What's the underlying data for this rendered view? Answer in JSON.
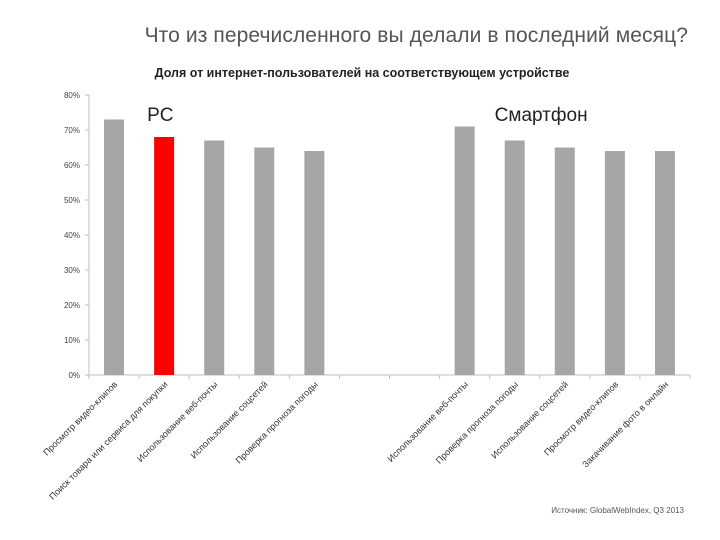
{
  "slide": {
    "title": "Что из перечисленного вы делали в последний месяц?",
    "source": "Источник: GlobalWebIndex, Q3 2013"
  },
  "chart_data": {
    "type": "bar",
    "title": "Доля от интернет-пользователей на соответствующем устройстве",
    "xlabel": "",
    "ylabel": "",
    "ylim": [
      0,
      80
    ],
    "yticks": [
      "0%",
      "10%",
      "20%",
      "30%",
      "40%",
      "50%",
      "60%",
      "70%",
      "80%"
    ],
    "grid": false,
    "groups": [
      {
        "name": "PC",
        "categories": [
          "Просмотр видео-клипов",
          "Поиск товара или сервиса для покупки",
          "Использование веб-почты",
          "Использование соцсетей",
          "Проверка прогноза погоды"
        ],
        "values": [
          73,
          68,
          67,
          65,
          64
        ],
        "highlight_index": 1
      },
      {
        "name": "Смартфон",
        "categories": [
          "Использование веб-почты",
          "Проверка прогноза погоды",
          "Использование соцсетей",
          "Просмотр видео-клипов",
          "Закачивание фото в онлайн"
        ],
        "values": [
          71,
          67,
          65,
          64,
          64
        ],
        "highlight_index": -1
      }
    ],
    "colors": {
      "bar": "#a6a6a6",
      "highlight": "#ff0000",
      "axis": "#bfbfbf",
      "text": "#333333"
    }
  }
}
